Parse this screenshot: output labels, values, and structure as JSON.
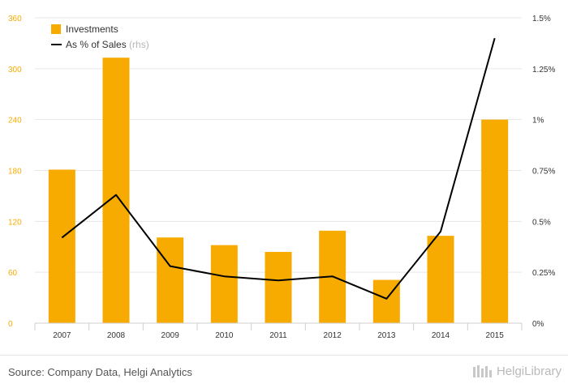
{
  "chart_data": {
    "type": "bar",
    "categories": [
      "2007",
      "2008",
      "2009",
      "2010",
      "2011",
      "2012",
      "2013",
      "2014",
      "2015"
    ],
    "series": [
      {
        "name": "Investments",
        "type": "bar",
        "axis": "left",
        "color": "#f7ab00",
        "values": [
          181,
          313,
          101,
          92,
          84,
          109,
          51,
          103,
          240
        ]
      },
      {
        "name": "As % of Sales",
        "name_suffix": "(rhs)",
        "type": "line",
        "axis": "right",
        "color": "#000000",
        "values": [
          0.42,
          0.63,
          0.28,
          0.23,
          0.21,
          0.23,
          0.12,
          0.45,
          1.4
        ]
      }
    ],
    "left_axis": {
      "ylim": [
        0,
        360
      ],
      "ticks": [
        0,
        60,
        120,
        180,
        240,
        300,
        360
      ],
      "tick_labels": [
        "0",
        "60",
        "120",
        "180",
        "240",
        "300",
        "360"
      ],
      "label_color": "#f7ab00"
    },
    "right_axis": {
      "ylim": [
        0,
        1.5
      ],
      "ticks": [
        0,
        0.25,
        0.5,
        0.75,
        1,
        1.25,
        1.5
      ],
      "tick_labels": [
        "0%",
        "0.25%",
        "0.5%",
        "0.75%",
        "1%",
        "1.25%",
        "1.5%"
      ]
    },
    "grid": true,
    "legend_position": "top-left"
  },
  "footer": {
    "source": "Source: Company Data, Helgi Analytics",
    "brand": "HelgiLibrary"
  }
}
